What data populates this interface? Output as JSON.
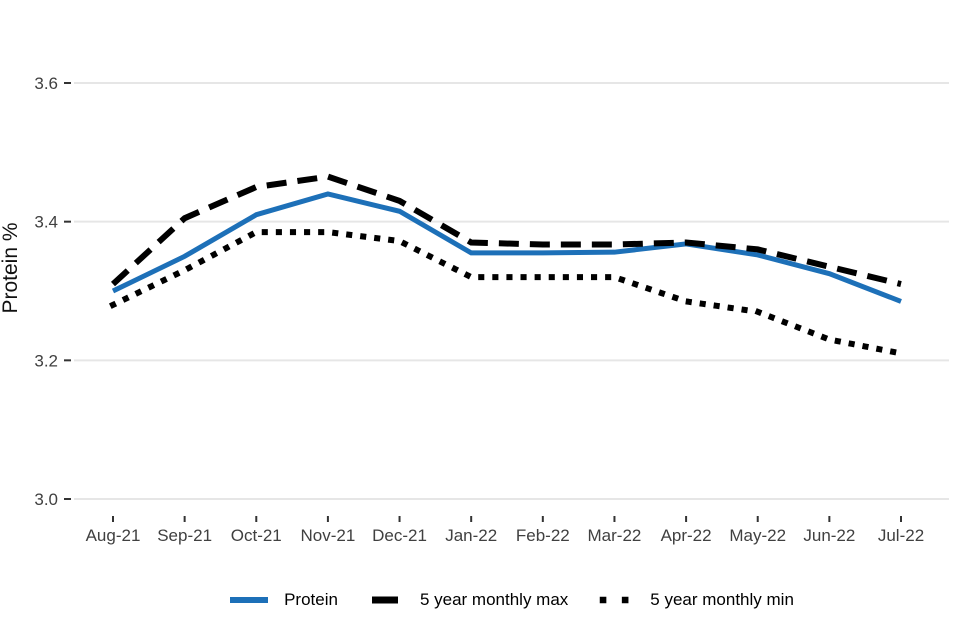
{
  "chart": {
    "y_axis_title": "Protein %",
    "background": "#ffffff"
  },
  "chart_data": {
    "type": "line",
    "title": "",
    "xlabel": "",
    "ylabel": "Protein %",
    "categories": [
      "Aug-21",
      "Sep-21",
      "Oct-21",
      "Nov-21",
      "Dec-21",
      "Jan-22",
      "Feb-22",
      "Mar-22",
      "Apr-22",
      "May-22",
      "Jun-22",
      "Jul-22"
    ],
    "series": [
      {
        "name": "Protein",
        "color": "#1d70b8",
        "style": "solid",
        "values": [
          3.3,
          3.35,
          3.41,
          3.44,
          3.415,
          3.355,
          3.355,
          3.356,
          3.368,
          3.352,
          3.325,
          3.285
        ]
      },
      {
        "name": "5 year monthly max",
        "color": "#000000",
        "style": "dashed",
        "values": [
          3.31,
          3.405,
          3.45,
          3.465,
          3.43,
          3.37,
          3.367,
          3.367,
          3.37,
          3.36,
          3.335,
          3.31
        ]
      },
      {
        "name": "5 year monthly min",
        "color": "#000000",
        "style": "dotted",
        "values": [
          3.28,
          3.33,
          3.385,
          3.385,
          3.372,
          3.32,
          3.32,
          3.32,
          3.285,
          3.27,
          3.23,
          3.21
        ]
      }
    ],
    "ylim": [
      3.0,
      3.6
    ],
    "y_ticks": [
      3.6,
      3.4,
      3.2,
      3.0
    ],
    "y_tick_labels": [
      "3.6",
      "3.4",
      "3.2",
      "3.0"
    ],
    "grid": "horizontal",
    "grid_color": "#e6e6e6",
    "legend_position": "bottom"
  }
}
